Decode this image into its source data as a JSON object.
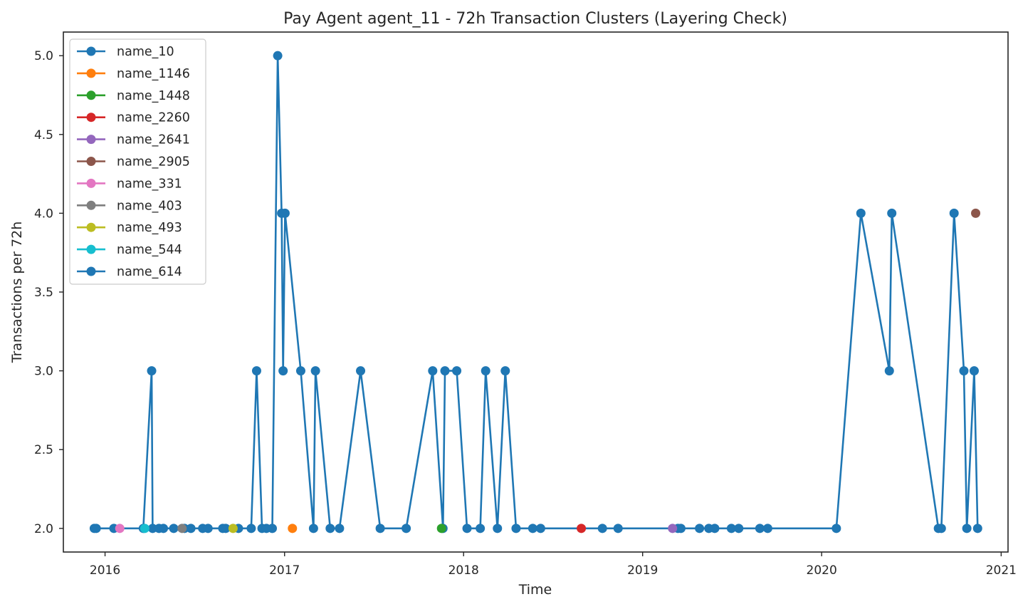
{
  "chart_data": {
    "type": "line",
    "title": "Pay Agent agent_11 - 72h Transaction Clusters (Layering Check)",
    "xlabel": "Time",
    "ylabel": "Transactions per 72h",
    "xlim": [
      "2015-10-08",
      "2021-01-15"
    ],
    "ylim": [
      1.85,
      5.15
    ],
    "x_ticks": [
      {
        "value": "2016-01-01",
        "label": "2016"
      },
      {
        "value": "2017-01-01",
        "label": "2017"
      },
      {
        "value": "2018-01-01",
        "label": "2018"
      },
      {
        "value": "2019-01-01",
        "label": "2019"
      },
      {
        "value": "2020-01-01",
        "label": "2020"
      },
      {
        "value": "2021-01-01",
        "label": "2021"
      }
    ],
    "y_ticks": [
      {
        "value": 2.0,
        "label": "2.0"
      },
      {
        "value": 2.5,
        "label": "2.5"
      },
      {
        "value": 3.0,
        "label": "3.0"
      },
      {
        "value": 3.5,
        "label": "3.5"
      },
      {
        "value": 4.0,
        "label": "4.0"
      },
      {
        "value": 4.5,
        "label": "4.5"
      },
      {
        "value": 5.0,
        "label": "5.0"
      }
    ],
    "grid": false,
    "legend_position": "top-left",
    "series": [
      {
        "name": "name_10",
        "color": "#1f77b4",
        "points": [
          [
            "2015-12-10",
            2
          ],
          [
            "2015-12-14",
            2
          ],
          [
            "2016-01-19",
            2
          ],
          [
            "2016-03-19",
            2
          ],
          [
            "2016-04-05",
            3
          ],
          [
            "2016-04-07",
            2
          ],
          [
            "2016-04-20",
            2
          ],
          [
            "2016-04-29",
            2
          ],
          [
            "2016-05-20",
            2
          ],
          [
            "2016-06-11",
            2
          ],
          [
            "2016-06-24",
            2
          ],
          [
            "2016-07-18",
            2
          ],
          [
            "2016-07-29",
            2
          ],
          [
            "2016-08-28",
            2
          ],
          [
            "2016-09-03",
            2
          ],
          [
            "2016-09-29",
            2
          ],
          [
            "2016-10-25",
            2
          ],
          [
            "2016-11-05",
            3
          ],
          [
            "2016-11-16",
            2
          ],
          [
            "2016-11-25",
            2
          ],
          [
            "2016-12-07",
            2
          ],
          [
            "2016-12-18",
            5
          ],
          [
            "2016-12-26",
            4
          ],
          [
            "2016-12-29",
            3
          ],
          [
            "2017-01-02",
            4
          ],
          [
            "2017-02-03",
            3
          ],
          [
            "2017-03-01",
            2
          ],
          [
            "2017-03-05",
            3
          ],
          [
            "2017-04-04",
            2
          ],
          [
            "2017-04-23",
            2
          ],
          [
            "2017-06-05",
            3
          ],
          [
            "2017-07-15",
            2
          ],
          [
            "2017-09-06",
            2
          ],
          [
            "2017-10-30",
            3
          ],
          [
            "2017-11-20",
            2
          ],
          [
            "2017-11-24",
            3
          ],
          [
            "2017-12-18",
            3
          ],
          [
            "2018-01-08",
            2
          ],
          [
            "2018-02-04",
            2
          ],
          [
            "2018-02-15",
            3
          ],
          [
            "2018-03-11",
            2
          ],
          [
            "2018-03-27",
            3
          ],
          [
            "2018-04-18",
            2
          ],
          [
            "2018-05-22",
            2
          ],
          [
            "2018-06-07",
            2
          ],
          [
            "2018-10-11",
            2
          ],
          [
            "2018-11-12",
            2
          ],
          [
            "2019-03-14",
            2
          ],
          [
            "2019-03-20",
            2
          ],
          [
            "2019-04-27",
            2
          ],
          [
            "2019-05-16",
            2
          ],
          [
            "2019-05-28",
            2
          ],
          [
            "2019-07-01",
            2
          ],
          [
            "2019-07-16",
            2
          ],
          [
            "2019-08-28",
            2
          ],
          [
            "2019-09-13",
            2
          ],
          [
            "2020-01-31",
            2
          ],
          [
            "2020-03-21",
            4
          ],
          [
            "2020-05-18",
            3
          ],
          [
            "2020-05-23",
            4
          ],
          [
            "2020-08-26",
            2
          ],
          [
            "2020-09-01",
            2
          ],
          [
            "2020-09-27",
            4
          ],
          [
            "2020-10-17",
            3
          ],
          [
            "2020-10-23",
            2
          ],
          [
            "2020-11-07",
            3
          ],
          [
            "2020-11-14",
            2
          ]
        ]
      },
      {
        "name": "name_1146",
        "color": "#ff7f0e",
        "points": [
          [
            "2017-01-17",
            2
          ]
        ]
      },
      {
        "name": "name_1448",
        "color": "#2ca02c",
        "points": [
          [
            "2017-11-17",
            2
          ]
        ]
      },
      {
        "name": "name_2260",
        "color": "#d62728",
        "points": [
          [
            "2018-08-29",
            2
          ]
        ]
      },
      {
        "name": "name_2641",
        "color": "#9467bd",
        "points": [
          [
            "2019-03-03",
            2
          ]
        ]
      },
      {
        "name": "name_2905",
        "color": "#8c564b",
        "points": [
          [
            "2020-11-10",
            4
          ]
        ]
      },
      {
        "name": "name_331",
        "color": "#e377c2",
        "points": [
          [
            "2016-01-31",
            2
          ]
        ]
      },
      {
        "name": "name_403",
        "color": "#7f7f7f",
        "points": [
          [
            "2016-06-06",
            2
          ]
        ]
      },
      {
        "name": "name_493",
        "color": "#bcbd22",
        "points": [
          [
            "2016-09-18",
            2
          ]
        ]
      },
      {
        "name": "name_544",
        "color": "#17becf",
        "points": [
          [
            "2016-03-22",
            2
          ]
        ]
      },
      {
        "name": "name_614",
        "color": "#1f77b4",
        "points": []
      }
    ]
  }
}
